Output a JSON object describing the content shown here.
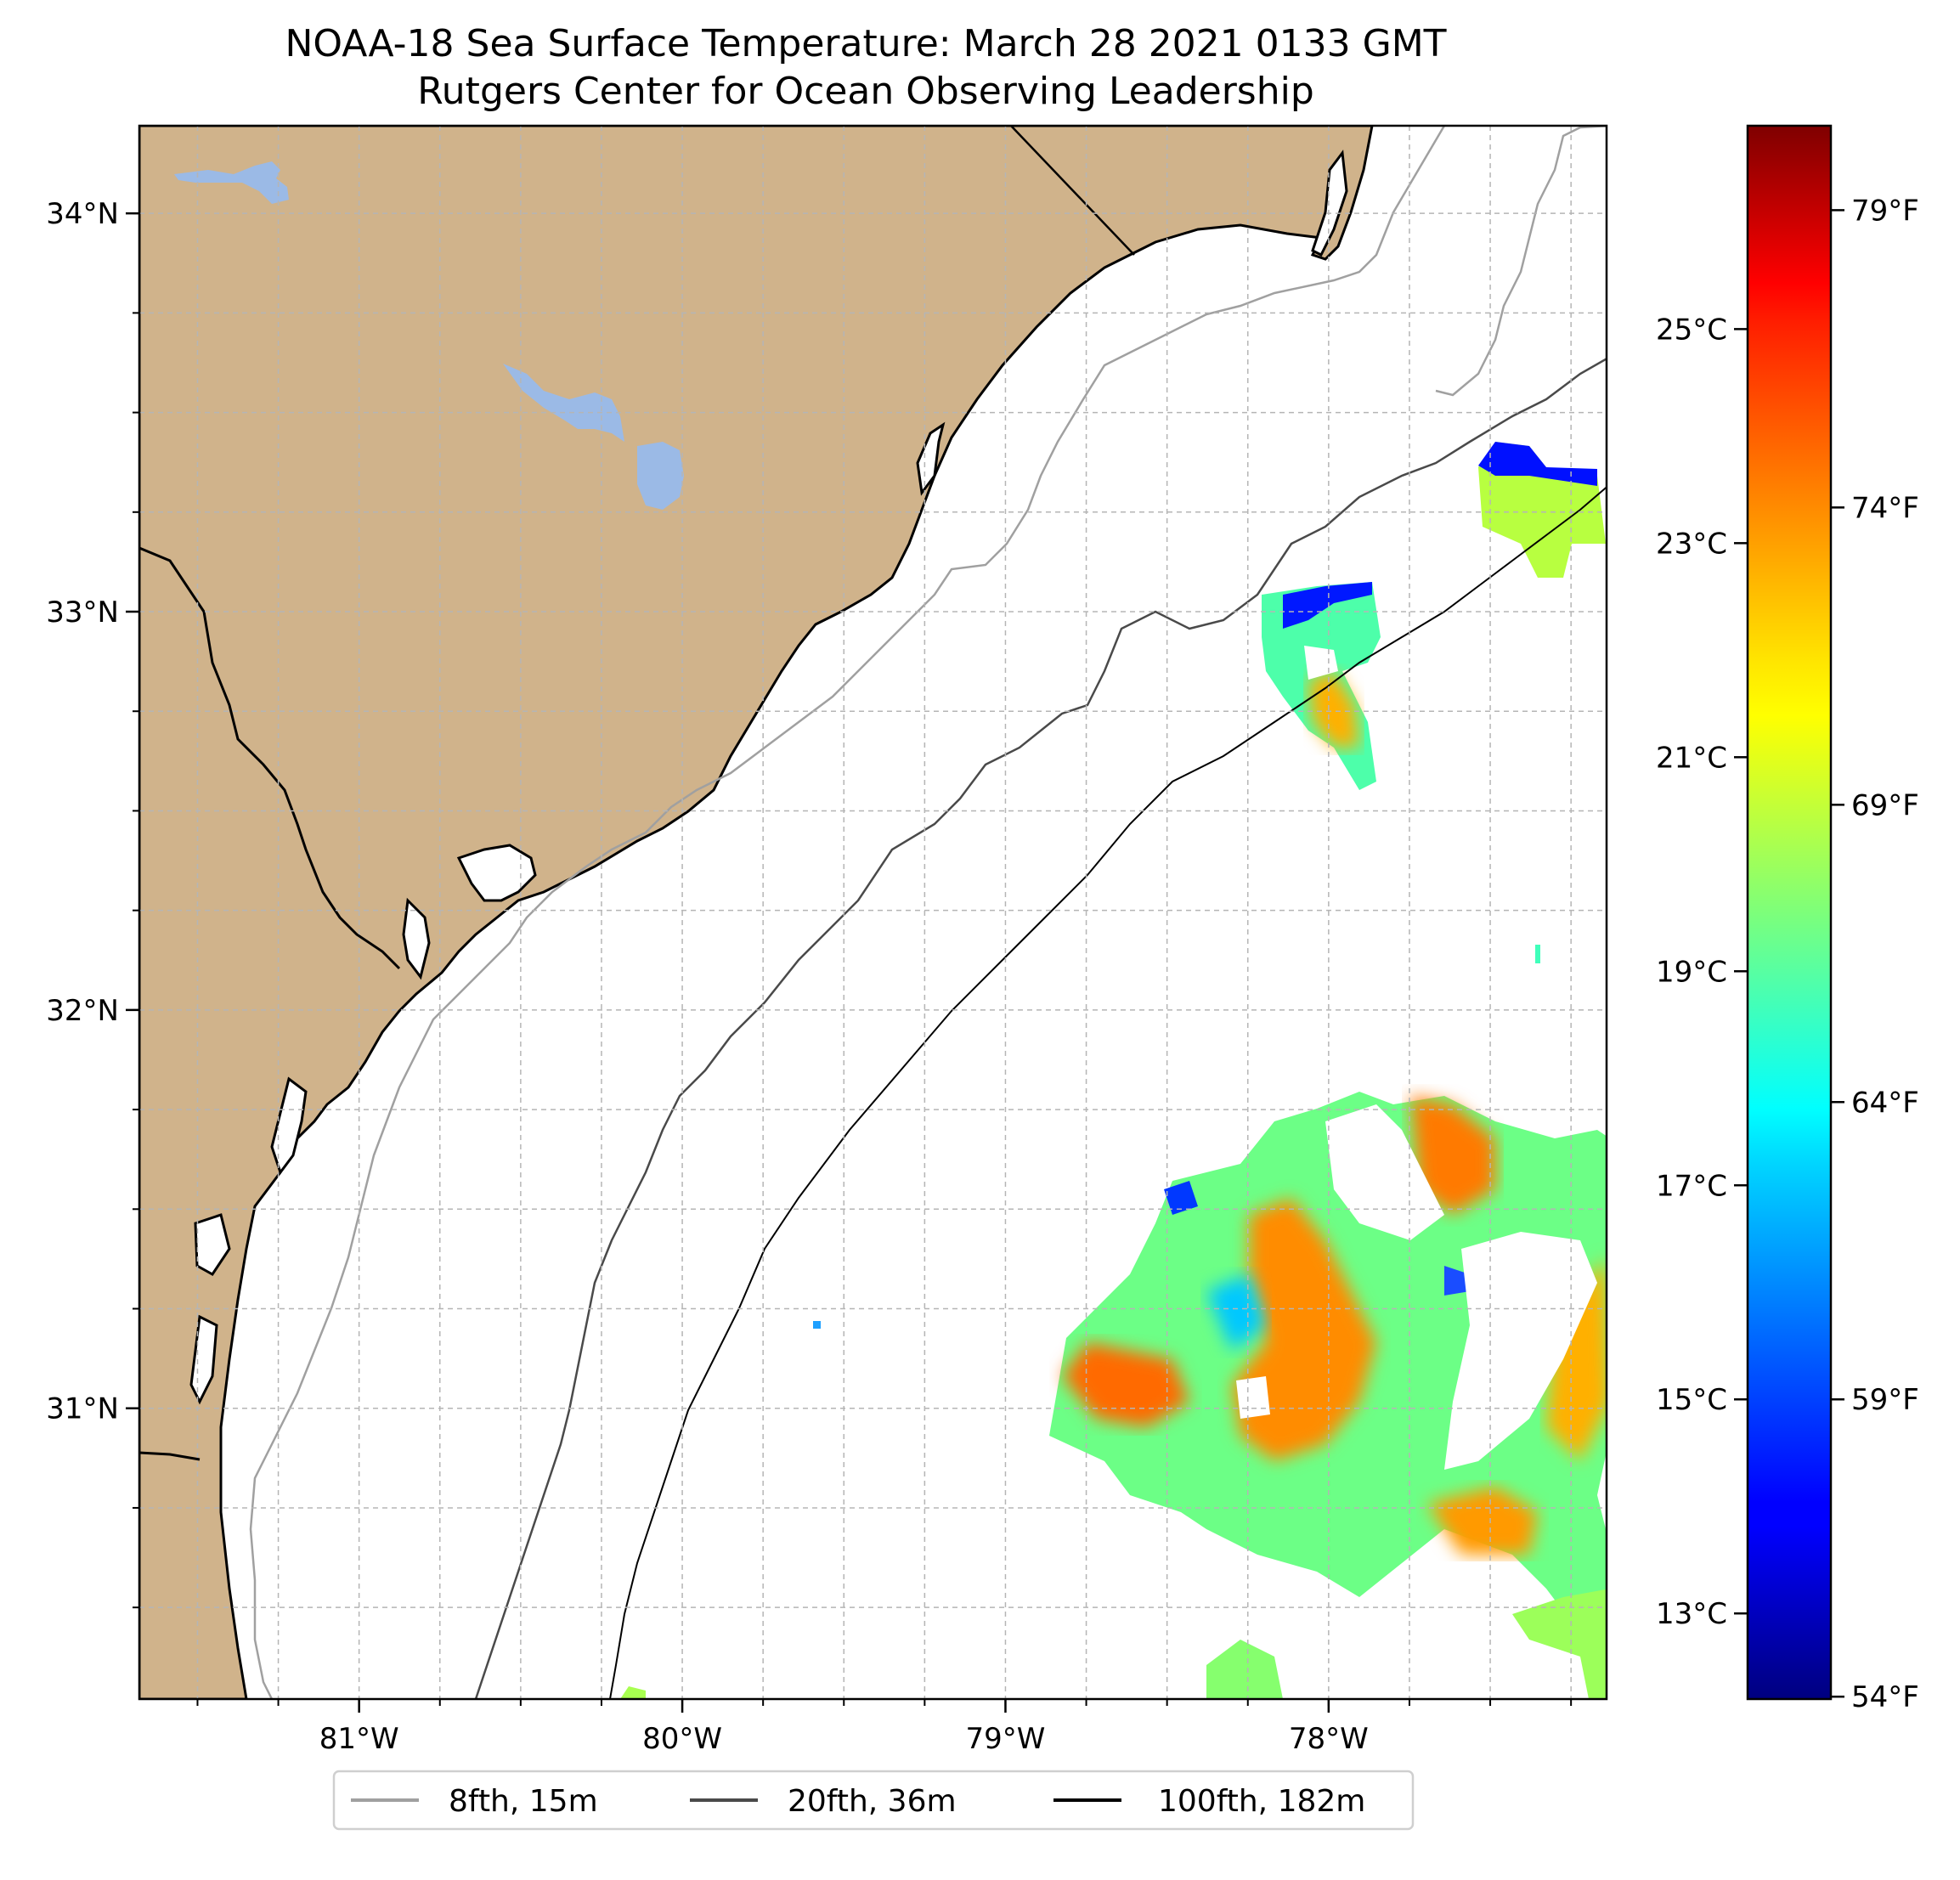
{
  "title": {
    "line1": "NOAA-18 Sea Surface Temperature: March 28 2021 0133 GMT",
    "line2": "Rutgers Center for Ocean Observing Leadership"
  },
  "map": {
    "lon_range": [
      -81.68,
      -77.14
    ],
    "lat_range": [
      30.27,
      34.22
    ],
    "lon_ticks": [
      {
        "value": -81,
        "label": "81°W"
      },
      {
        "value": -80,
        "label": "80°W"
      },
      {
        "value": -79,
        "label": "79°W"
      },
      {
        "value": -78,
        "label": "78°W"
      }
    ],
    "lat_ticks": [
      {
        "value": 31,
        "label": "31°N"
      },
      {
        "value": 32,
        "label": "32°N"
      },
      {
        "value": 33,
        "label": "33°N"
      },
      {
        "value": 34,
        "label": "34°N"
      }
    ],
    "grid": "dashed, every 0.25°",
    "land_color": "#d0b38b",
    "water_color": "#9bbae6",
    "ocean_color": "#ffffff"
  },
  "colorbar": {
    "colormap": "jet",
    "range_c": [
      12.2,
      26.9
    ],
    "celsius_ticks": [
      {
        "value": 13,
        "label": "13°C"
      },
      {
        "value": 15,
        "label": "15°C"
      },
      {
        "value": 17,
        "label": "17°C"
      },
      {
        "value": 19,
        "label": "19°C"
      },
      {
        "value": 21,
        "label": "21°C"
      },
      {
        "value": 23,
        "label": "23°C"
      },
      {
        "value": 25,
        "label": "25°C"
      }
    ],
    "fahrenheit_ticks": [
      {
        "value": 54,
        "label": "54°F"
      },
      {
        "value": 59,
        "label": "59°F"
      },
      {
        "value": 64,
        "label": "64°F"
      },
      {
        "value": 69,
        "label": "69°F"
      },
      {
        "value": 74,
        "label": "74°F"
      },
      {
        "value": 79,
        "label": "79°F"
      }
    ]
  },
  "legend": {
    "placement": "bottom-center",
    "items": [
      {
        "label": "8fth, 15m",
        "color": "#a0a0a0"
      },
      {
        "label": "20fth, 36m",
        "color": "#4a4a4a"
      },
      {
        "label": "100fth, 182m",
        "color": "#000000"
      }
    ]
  }
}
